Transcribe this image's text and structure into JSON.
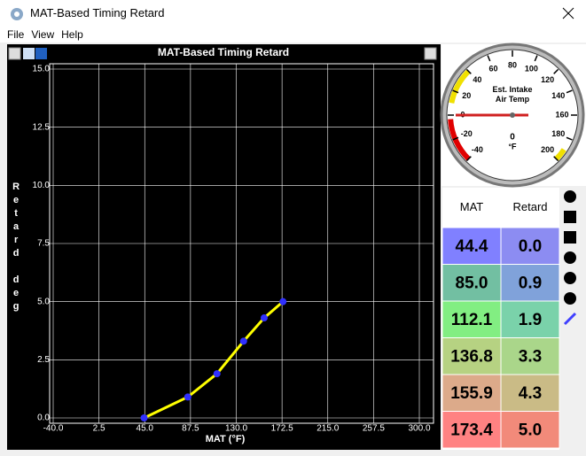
{
  "window": {
    "title": "MAT-Based Timing Retard",
    "menu": [
      "File",
      "View",
      "Help"
    ]
  },
  "chart_data": {
    "type": "line",
    "title": "MAT-Based Timing Retard",
    "xlabel": "MAT (°F)",
    "ylabel": "Retard deg",
    "x": [
      44.4,
      85.0,
      112.1,
      136.8,
      155.9,
      173.4
    ],
    "series": [
      {
        "name": "Retard",
        "color": "#ffff00",
        "marker_color": "#3030ff",
        "values": [
          0.0,
          0.9,
          1.9,
          3.3,
          4.3,
          5.0
        ]
      }
    ],
    "xlim": [
      -40,
      300
    ],
    "xticks": [
      {
        "value": -40,
        "label": "-40.0"
      },
      {
        "value": 2.5,
        "label": "2.5"
      },
      {
        "value": 45,
        "label": "45.0"
      },
      {
        "value": 87.5,
        "label": "87.5"
      },
      {
        "value": 130,
        "label": "130.0"
      },
      {
        "value": 172.5,
        "label": "172.5"
      },
      {
        "value": 215,
        "label": "215.0"
      },
      {
        "value": 257.5,
        "label": "257.5"
      },
      {
        "value": 300,
        "label": "300.0"
      }
    ],
    "ylim": [
      0,
      15
    ],
    "yticks": [
      {
        "value": 0,
        "label": "0.0"
      },
      2.5,
      {
        "value": 5,
        "label": "5.0"
      },
      7.5,
      {
        "value": 10,
        "label": "10.0"
      },
      12.5,
      {
        "value": 15,
        "label": "15.0"
      }
    ],
    "grid": true
  },
  "gauge": {
    "title": "Est. Intake Air Temp",
    "unit": "°F",
    "value": 0,
    "min": -40,
    "max": 200,
    "ticks": [
      -40,
      -20,
      0,
      20,
      40,
      60,
      80,
      100,
      120,
      140,
      160,
      180,
      200
    ]
  },
  "table": {
    "headers": [
      "MAT",
      "Retard"
    ],
    "rows": [
      [
        "44.4",
        "0.0"
      ],
      [
        "85.0",
        "0.9"
      ],
      [
        "112.1",
        "1.9"
      ],
      [
        "136.8",
        "3.3"
      ],
      [
        "155.9",
        "4.3"
      ],
      [
        "173.4",
        "5.0"
      ]
    ],
    "row_colors": [
      [
        "#8080ff",
        "#8c8cf2"
      ],
      [
        "#72bfa2",
        "#80a2da"
      ],
      [
        "#82ee82",
        "#7ad2aa"
      ],
      [
        "#b6d282",
        "#aad68a"
      ],
      [
        "#dcaa8a",
        "#cabb86"
      ],
      [
        "#ff8282",
        "#f28a7a"
      ]
    ]
  }
}
